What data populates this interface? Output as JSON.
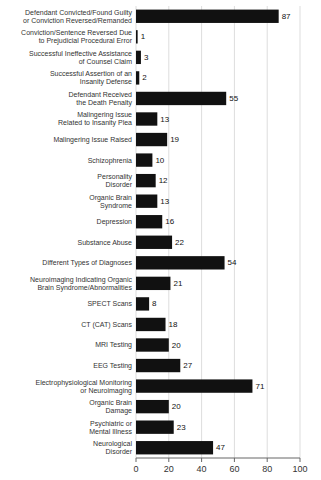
{
  "chart_data": {
    "type": "bar",
    "orientation": "horizontal",
    "categories": [
      "Defendant Convicted/Found Guilty\nor Conviction Reversed/Remanded",
      "Conviction/Sentence Reversed Due\nto Prejudicial Procedural Error",
      "Successful Ineffective Assistance\nof Counsel Claim",
      "Successful Assertion of an\nInsanity Defense",
      "Defendant Received\nthe Death Penalty",
      "Malingering Issue\nRelated to Insanity Plea",
      "Malingering Issue Raised",
      "Schizophrenia",
      "Personality\nDisorder",
      "Organic Brain\nSyndrome",
      "Depression",
      "Substance Abuse",
      "Different Types of Diagnoses",
      "Neuroimaging Indicating Organic\nBrain Syndrome/Abnormalities",
      "SPECT Scans",
      "CT (CAT) Scans",
      "MRI Testing",
      "EEG Testing",
      "Electrophysiological Monitoring\nor Neuroimaging",
      "Organic Brain\nDamage",
      "Psychiatric or\nMental Illness",
      "Neurological\nDisorder"
    ],
    "values": [
      87,
      1,
      3,
      2,
      55,
      13,
      19,
      10,
      12,
      13,
      16,
      22,
      54,
      21,
      8,
      18,
      20,
      27,
      71,
      20,
      23,
      47
    ],
    "color": "#111111",
    "xlim": [
      0,
      100
    ],
    "xticks": [
      0,
      20,
      40,
      60,
      80,
      100
    ],
    "grid": true,
    "data_labels": true
  }
}
